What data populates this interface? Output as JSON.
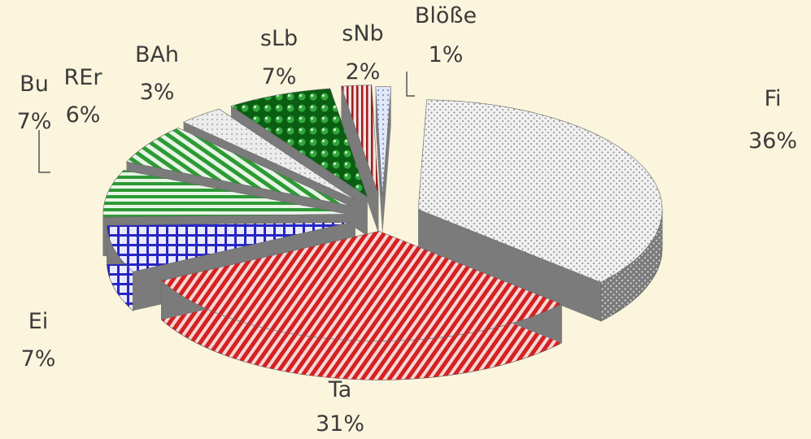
{
  "chart_data": {
    "type": "pie",
    "style": "3d-exploded",
    "total_percent": 100,
    "slices": [
      {
        "name": "Fi",
        "value": 36,
        "label": "36%",
        "color": "#e6e6e6",
        "side": "#6e6e6e",
        "pattern": "dots-gray"
      },
      {
        "name": "Ta",
        "value": 31,
        "label": "31%",
        "color": "#cc1f1f",
        "side": "#b51616",
        "pattern": "diag-red"
      },
      {
        "name": "Ei",
        "value": 7,
        "label": "7%",
        "color": "#2c2cc8",
        "side": "#1f1fa6",
        "pattern": "grid-blue"
      },
      {
        "name": "Bu",
        "value": 7,
        "label": "7%",
        "color": "#2e9a35",
        "side": "#2e9a35",
        "pattern": "hstripe-green"
      },
      {
        "name": "REr",
        "value": 6,
        "label": "6%",
        "color": "#2e9a35",
        "side": "#2e9a35",
        "pattern": "diag-green"
      },
      {
        "name": "BAh",
        "value": 3,
        "label": "3%",
        "color": "#d8d8d8",
        "side": "#8c8c8c",
        "pattern": "dots-light"
      },
      {
        "name": "sLb",
        "value": 7,
        "label": "7%",
        "color": "#0a6b14",
        "side": "#0a5a10",
        "pattern": "spheres-green"
      },
      {
        "name": "sNb",
        "value": 2,
        "label": "2%",
        "color": "#9b1a1a",
        "side": "#7a7a7a",
        "pattern": "vstripe-red"
      },
      {
        "name": "Blöße",
        "value": 1,
        "label": "1%",
        "color": "#c9d3ee",
        "side": "#9aa6c9",
        "pattern": "dots-blue"
      }
    ]
  }
}
